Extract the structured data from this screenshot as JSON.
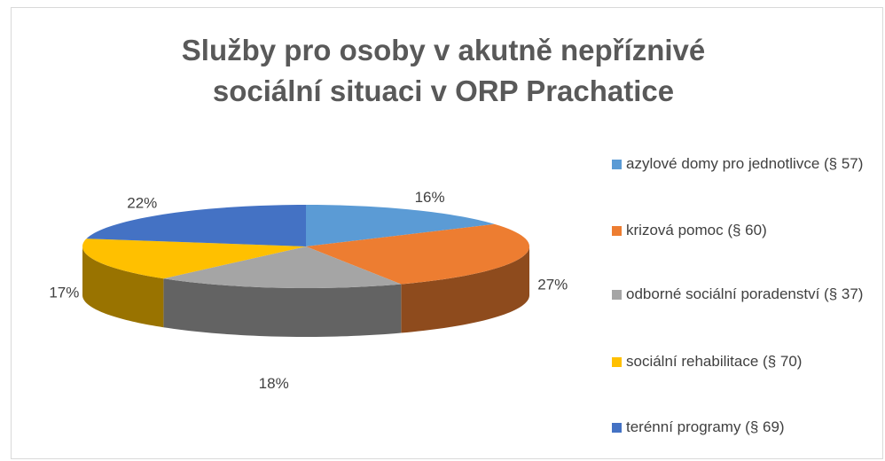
{
  "chart_data": {
    "type": "pie3d",
    "title": "Služby pro osoby v akutně nepříznivé sociální situaci v ORP Prachatice",
    "categories": [
      "azylové domy pro jednotlivce (§ 57)",
      "krizová pomoc (§ 60)",
      "odborné sociální poradenství (§ 37)",
      "sociální rehabilitace (§ 70)",
      "terénní programy (§ 69)"
    ],
    "values": [
      16,
      27,
      18,
      17,
      22
    ],
    "value_labels": [
      "16%",
      "27%",
      "18%",
      "17%",
      "22%"
    ],
    "colors": [
      "#5b9bd5",
      "#ed7d31",
      "#a5a5a5",
      "#ffc000",
      "#4472c4"
    ],
    "legend": "right"
  }
}
